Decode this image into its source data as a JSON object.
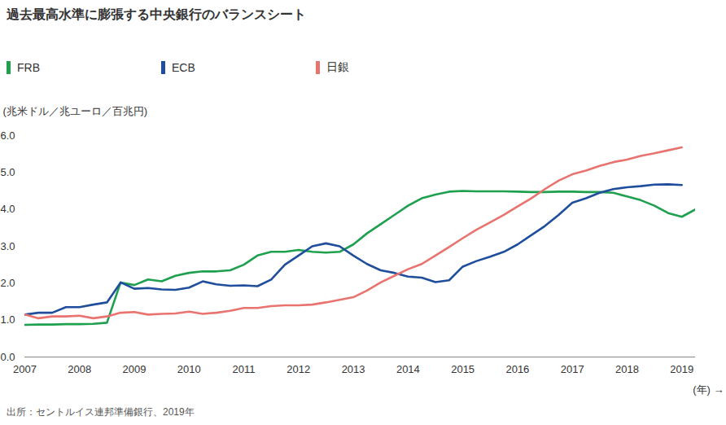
{
  "chart_data": {
    "type": "line",
    "title": "過去最高水準に膨張する中央銀行のバランスシート",
    "y_label": "(兆米ドル／兆ユーロ／百兆円)",
    "x_label": "(年)",
    "source": "出所：セントルイス連邦準備銀行、2019年",
    "legend": "top-left",
    "grid": false,
    "x": [
      2007,
      2007.25,
      2007.5,
      2007.75,
      2008,
      2008.25,
      2008.5,
      2008.75,
      2009,
      2009.25,
      2009.5,
      2009.75,
      2010,
      2010.25,
      2010.5,
      2010.75,
      2011,
      2011.25,
      2011.5,
      2011.75,
      2012,
      2012.25,
      2012.5,
      2012.75,
      2013,
      2013.25,
      2013.5,
      2013.75,
      2014,
      2014.25,
      2014.5,
      2014.75,
      2015,
      2015.25,
      2015.5,
      2015.75,
      2016,
      2016.25,
      2016.5,
      2016.75,
      2017,
      2017.25,
      2017.5,
      2017.75,
      2018,
      2018.25,
      2018.5,
      2018.75,
      2019,
      2019.25
    ],
    "xlim": [
      2007,
      2019.25
    ],
    "xticks": [
      2007,
      2008,
      2009,
      2010,
      2011,
      2012,
      2013,
      2014,
      2015,
      2016,
      2017,
      2018,
      2019
    ],
    "ylim": [
      0,
      6
    ],
    "yticks": [
      0,
      1,
      2,
      3,
      4,
      5,
      6
    ],
    "series": [
      {
        "name": "FRB",
        "color": "#1ea04f",
        "values": [
          0.87,
          0.88,
          0.88,
          0.89,
          0.89,
          0.9,
          0.93,
          2.02,
          1.95,
          2.1,
          2.05,
          2.2,
          2.28,
          2.32,
          2.32,
          2.35,
          2.5,
          2.75,
          2.85,
          2.85,
          2.9,
          2.85,
          2.83,
          2.85,
          3.05,
          3.35,
          3.6,
          3.85,
          4.1,
          4.3,
          4.4,
          4.48,
          4.5,
          4.49,
          4.49,
          4.49,
          4.48,
          4.47,
          4.47,
          4.48,
          4.48,
          4.47,
          4.47,
          4.45,
          4.35,
          4.25,
          4.1,
          3.9,
          3.8,
          4.0
        ]
      },
      {
        "name": "ECB",
        "color": "#1f4e9c",
        "values": [
          1.15,
          1.2,
          1.2,
          1.35,
          1.35,
          1.42,
          1.48,
          2.02,
          1.85,
          1.87,
          1.83,
          1.82,
          1.88,
          2.05,
          1.97,
          1.93,
          1.94,
          1.92,
          2.1,
          2.5,
          2.75,
          3.0,
          3.08,
          3.0,
          2.75,
          2.52,
          2.35,
          2.28,
          2.18,
          2.15,
          2.03,
          2.08,
          2.45,
          2.6,
          2.72,
          2.85,
          3.05,
          3.3,
          3.55,
          3.85,
          4.18,
          4.3,
          4.45,
          4.55,
          4.6,
          4.63,
          4.67,
          4.68,
          4.66,
          null
        ]
      },
      {
        "name": "日銀",
        "color": "#e8736f",
        "values": [
          1.15,
          1.05,
          1.1,
          1.1,
          1.12,
          1.05,
          1.1,
          1.2,
          1.22,
          1.15,
          1.17,
          1.18,
          1.23,
          1.17,
          1.2,
          1.25,
          1.33,
          1.33,
          1.38,
          1.4,
          1.4,
          1.42,
          1.48,
          1.55,
          1.62,
          1.8,
          2.02,
          2.2,
          2.38,
          2.52,
          2.75,
          2.98,
          3.22,
          3.45,
          3.65,
          3.85,
          4.08,
          4.3,
          4.55,
          4.78,
          4.95,
          5.05,
          5.18,
          5.28,
          5.35,
          5.45,
          5.52,
          5.6,
          5.68,
          null
        ]
      }
    ]
  }
}
